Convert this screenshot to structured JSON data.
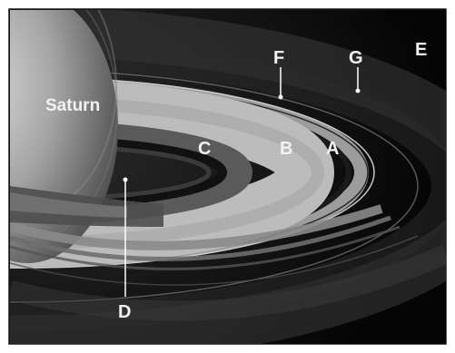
{
  "planet_label": "Saturn",
  "ring_labels": {
    "a": "A",
    "b": "B",
    "c": "C",
    "d": "D",
    "e": "E",
    "f": "F",
    "g": "G"
  },
  "colors": {
    "space": "#050505",
    "planet": "#9a9a9a",
    "ring_bright": "#bdbdbd",
    "ring_mid": "#8a8a8a",
    "ring_dark": "#4a4a4a",
    "label": "#f2f2f2",
    "border": "#1a1a1a"
  }
}
